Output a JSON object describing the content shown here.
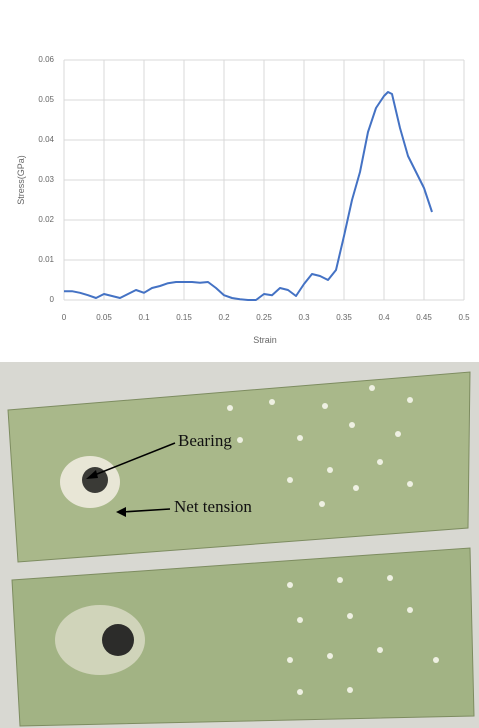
{
  "chart_data": {
    "type": "line",
    "x_label": "Strain",
    "y_label": "Stress(GPa)",
    "color": "#4472c4",
    "grid": true,
    "x": [
      0,
      0.01,
      0.02,
      0.03,
      0.04,
      0.05,
      0.06,
      0.07,
      0.08,
      0.09,
      0.1,
      0.11,
      0.12,
      0.13,
      0.14,
      0.15,
      0.16,
      0.17,
      0.18,
      0.19,
      0.2,
      0.21,
      0.22,
      0.23,
      0.24,
      0.25,
      0.26,
      0.27,
      0.28,
      0.29,
      0.3,
      0.31,
      0.32,
      0.33,
      0.34,
      0.35,
      0.36,
      0.37,
      0.38,
      0.39,
      0.4,
      0.405,
      0.41,
      0.42,
      0.43,
      0.44,
      0.45,
      0.46
    ],
    "values": [
      0.0022,
      0.0022,
      0.0018,
      0.0012,
      0.0005,
      0.0015,
      0.001,
      0.0005,
      0.0015,
      0.0025,
      0.0018,
      0.003,
      0.0035,
      0.0042,
      0.0045,
      0.0045,
      0.0045,
      0.0043,
      0.0045,
      0.003,
      0.0012,
      0.0005,
      0.0002,
      0,
      0,
      0.0015,
      0.0012,
      0.003,
      0.0025,
      0.001,
      0.004,
      0.0065,
      0.006,
      0.005,
      0.0075,
      0.016,
      0.025,
      0.032,
      0.042,
      0.048,
      0.051,
      0.052,
      0.0515,
      0.043,
      0.036,
      0.032,
      0.028,
      0.022
    ],
    "xlim": [
      0,
      0.5
    ],
    "xticks": [
      0,
      0.05,
      0.1,
      0.15,
      0.2,
      0.25,
      0.3,
      0.35,
      0.4,
      0.45,
      0.5
    ],
    "ylim": [
      0,
      0.06
    ],
    "yticks": [
      0,
      0.01,
      0.02,
      0.03,
      0.04,
      0.05,
      0.06
    ]
  },
  "photo": {
    "labels": [
      "Bearing",
      "Net tension"
    ]
  }
}
